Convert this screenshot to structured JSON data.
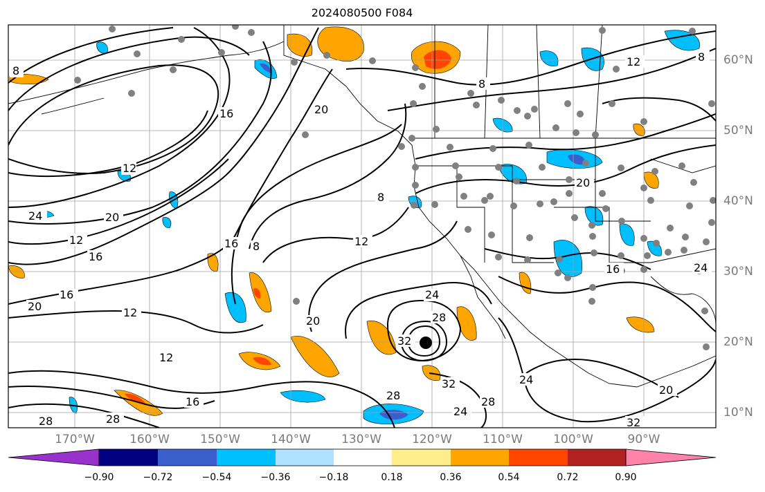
{
  "title": "2024080500 F084",
  "map": {
    "longitude_labels": [
      "170°W",
      "160°W",
      "150°W",
      "140°W",
      "130°W",
      "120°W",
      "110°W",
      "100°W",
      "90°W"
    ],
    "latitude_labels": [
      "60°N",
      "50°N",
      "40°N",
      "30°N",
      "20°N",
      "10°N"
    ],
    "contour_labels": [
      "8",
      "12",
      "16",
      "20",
      "24",
      "28",
      "32"
    ],
    "contour_color": "#000000",
    "grid_color": "#a0a0a0",
    "station_marker_color": "#808080",
    "storm_center_marker_color": "#000000"
  },
  "colorbar": {
    "ticks": [
      "−0.90",
      "−0.72",
      "−0.54",
      "−0.36",
      "−0.18",
      "0.18",
      "0.36",
      "0.54",
      "0.72",
      "0.90"
    ],
    "colors": [
      "#9932cc",
      "#000080",
      "#3a5fcd",
      "#00bfff",
      "#b0e2ff",
      "#ffffff",
      "#ffec8b",
      "#ffa500",
      "#ff4500",
      "#b22222",
      "#ff82ab"
    ]
  }
}
